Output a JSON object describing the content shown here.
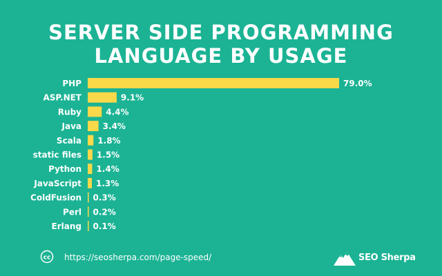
{
  "title": {
    "line1": "SERVER SIDE PROGRAMMING",
    "line2": "LANGUAGE BY USAGE"
  },
  "colors": {
    "background": "#1bb394",
    "bar": "#f9d84a",
    "text": "#ffffff"
  },
  "chart_data": {
    "type": "bar",
    "orientation": "horizontal",
    "title": "SERVER SIDE PROGRAMMING LANGUAGE BY USAGE",
    "categories": [
      "PHP",
      "ASP.NET",
      "Ruby",
      "Java",
      "Scala",
      "static files",
      "Python",
      "JavaScript",
      "ColdFusion",
      "Perl",
      "Erlang"
    ],
    "values": [
      79.0,
      9.1,
      4.4,
      3.4,
      1.8,
      1.5,
      1.4,
      1.3,
      0.3,
      0.2,
      0.1
    ],
    "value_labels": [
      "79.0%",
      "9.1%",
      "4.4%",
      "3.4%",
      "1.8%",
      "1.5%",
      "1.4%",
      "1.3%",
      "0.3%",
      "0.2%",
      "0.1%"
    ],
    "xlabel": "",
    "ylabel": "",
    "xlim": [
      0,
      79
    ],
    "grid": false,
    "legend": "none"
  },
  "footer": {
    "cc_icon": "cc-icon",
    "cc_text": "cc",
    "url": "https://seosherpa.com/page-speed/",
    "brand_icon": "mountain-logo-icon",
    "brand": "SEO Sherpa"
  }
}
